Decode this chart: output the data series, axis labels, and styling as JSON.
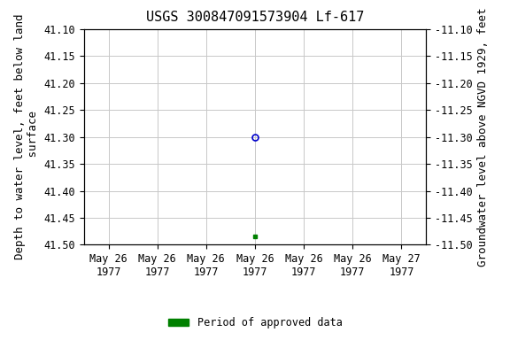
{
  "title": "USGS 300847091573904 Lf-617",
  "ylabel_left": "Depth to water level, feet below land\n surface",
  "ylabel_right": "Groundwater level above NGVD 1929, feet",
  "ylim_left": [
    41.1,
    41.5
  ],
  "ylim_right": [
    -11.1,
    -11.5
  ],
  "yticks_left": [
    41.1,
    41.15,
    41.2,
    41.25,
    41.3,
    41.35,
    41.4,
    41.45,
    41.5
  ],
  "yticks_right": [
    -11.1,
    -11.15,
    -11.2,
    -11.25,
    -11.3,
    -11.35,
    -11.4,
    -11.45,
    -11.5
  ],
  "ytick_labels_left": [
    "41.10",
    "41.15",
    "41.20",
    "41.25",
    "41.30",
    "41.35",
    "41.40",
    "41.45",
    "41.50"
  ],
  "ytick_labels_right": [
    "-11.10",
    "-11.15",
    "-11.20",
    "-11.25",
    "-11.30",
    "-11.35",
    "-11.40",
    "-11.45",
    "-11.50"
  ],
  "xtick_labels": [
    "May 26\n1977",
    "May 26\n1977",
    "May 26\n1977",
    "May 26\n1977",
    "May 26\n1977",
    "May 26\n1977",
    "May 27\n1977"
  ],
  "xtick_positions": [
    0,
    1,
    2,
    3,
    4,
    5,
    6
  ],
  "xlim": [
    -0.5,
    6.5
  ],
  "point_open_x": 3.0,
  "point_open_y": 41.3,
  "point_open_color": "#0000cc",
  "point_filled_x": 3.0,
  "point_filled_y": 41.485,
  "point_filled_color": "#008000",
  "legend_label": "Period of approved data",
  "legend_color": "#008000",
  "bg_color": "#ffffff",
  "grid_color": "#c8c8c8",
  "title_fontsize": 11,
  "tick_fontsize": 8.5,
  "label_fontsize": 9
}
